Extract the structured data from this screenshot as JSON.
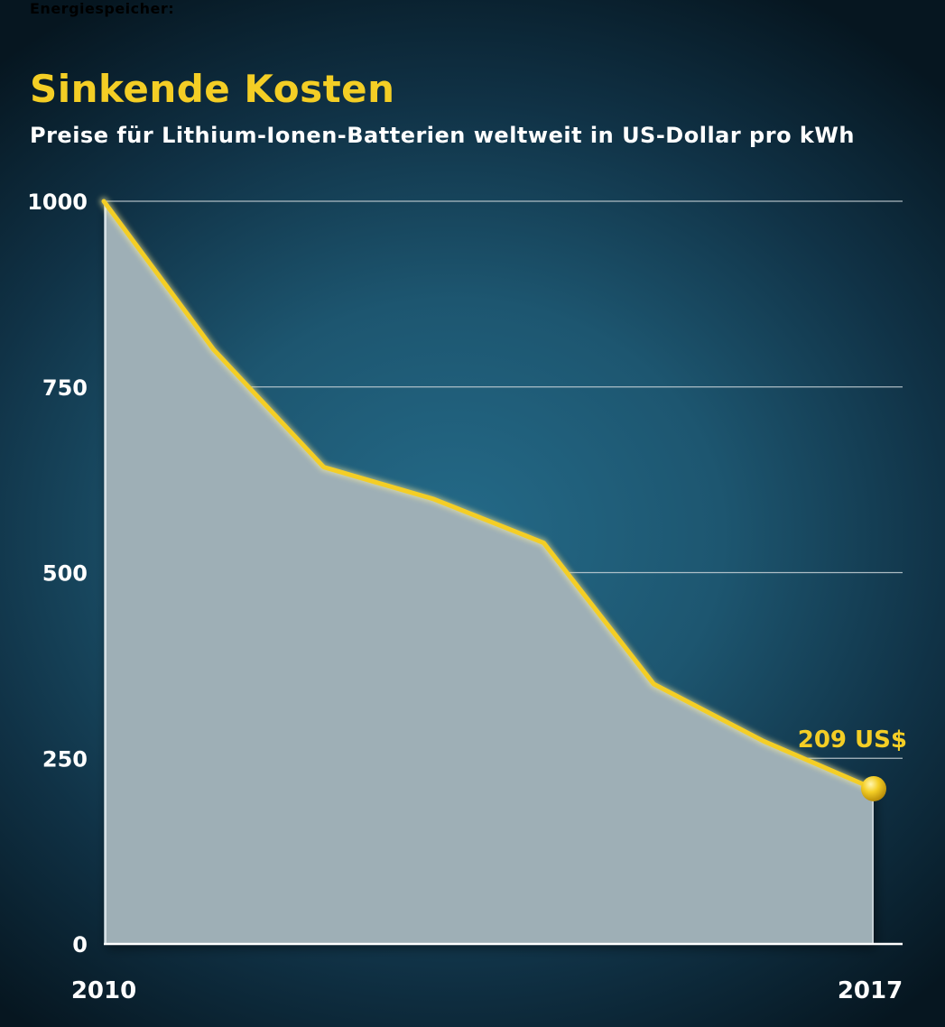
{
  "header": {
    "kicker": "Energiespeicher:",
    "title": "Sinkende Kosten",
    "subtitle": "Preise für Lithium-Ionen-Batterien weltweit in US-Dollar pro kWh"
  },
  "colors": {
    "line": "#f4ce25",
    "area": "#9eafb6",
    "grid": "#c9d3d8",
    "text": "#ffffff"
  },
  "chart_data": {
    "type": "area",
    "x": [
      2010,
      2011,
      2012,
      2013,
      2014,
      2015,
      2016,
      2017
    ],
    "values": [
      1000,
      800,
      642,
      599,
      540,
      350,
      273,
      209
    ],
    "ylim": [
      0,
      1000
    ],
    "y_ticks": [
      0,
      250,
      500,
      750,
      1000
    ],
    "x_tick_labels": [
      "2010",
      "2017"
    ],
    "grid": "horizontal",
    "annotations": [
      {
        "x": 2017,
        "value": 209,
        "text": "209 US$"
      }
    ]
  }
}
